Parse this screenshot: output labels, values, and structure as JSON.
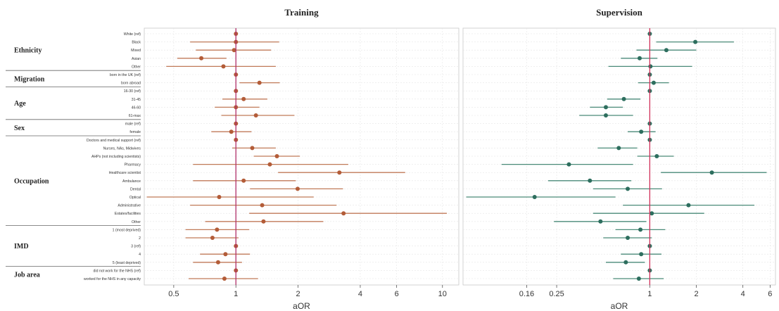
{
  "chart_data": [
    {
      "type": "forest",
      "title": "Training",
      "xlabel": "aOR",
      "x_scale": "log",
      "xlim": [
        0.36,
        12
      ],
      "xticks": [
        0.5,
        1,
        2,
        4,
        6,
        10
      ],
      "xtick_labels": [
        "0.5",
        "1",
        "2",
        "4",
        "6",
        "10"
      ],
      "reference_line": 1,
      "point_color": "#b35c38",
      "line_color": "#c07a58",
      "ref_line_color": "#b0306a",
      "rows": [
        {
          "label": "White (ref)",
          "or": 1.0,
          "lo": 1.0,
          "hi": 1.0
        },
        {
          "label": "Black",
          "or": 1.0,
          "lo": 0.6,
          "hi": 1.62
        },
        {
          "label": "Mixed",
          "or": 0.98,
          "lo": 0.64,
          "hi": 1.48
        },
        {
          "label": "Asian",
          "or": 0.68,
          "lo": 0.52,
          "hi": 0.9
        },
        {
          "label": "Other",
          "or": 0.87,
          "lo": 0.46,
          "hi": 1.56
        },
        {
          "label": "born in the UK (ref)",
          "or": 1.0,
          "lo": 1.0,
          "hi": 1.0
        },
        {
          "label": "born abroad",
          "or": 1.3,
          "lo": 1.04,
          "hi": 1.63
        },
        {
          "label": "16-30 (ref)",
          "or": 1.0,
          "lo": 1.0,
          "hi": 1.0
        },
        {
          "label": "31-45",
          "or": 1.09,
          "lo": 0.86,
          "hi": 1.42
        },
        {
          "label": "46-60",
          "or": 1.0,
          "lo": 0.79,
          "hi": 1.3
        },
        {
          "label": "61-max",
          "or": 1.25,
          "lo": 0.85,
          "hi": 1.92
        },
        {
          "label": "male (ref)",
          "or": 1.0,
          "lo": 1.0,
          "hi": 1.0
        },
        {
          "label": "female",
          "or": 0.95,
          "lo": 0.76,
          "hi": 1.19
        },
        {
          "label": "Doctors and medical support (ref)",
          "or": 1.0,
          "lo": 1.0,
          "hi": 1.0
        },
        {
          "label": "Nurses, NAs, Midwives",
          "or": 1.2,
          "lo": 0.96,
          "hi": 1.56
        },
        {
          "label": "AHPs (not including scientists)",
          "or": 1.58,
          "lo": 1.22,
          "hi": 2.04
        },
        {
          "label": "Pharmacy",
          "or": 1.46,
          "lo": 0.62,
          "hi": 3.5
        },
        {
          "label": "Healthcare scientist",
          "or": 3.17,
          "lo": 1.6,
          "hi": 6.6
        },
        {
          "label": "Ambulance",
          "or": 1.09,
          "lo": 0.62,
          "hi": 1.95
        },
        {
          "label": "Dental",
          "or": 1.99,
          "lo": 1.17,
          "hi": 3.3
        },
        {
          "label": "Optical",
          "or": 0.83,
          "lo": 0.37,
          "hi": 2.38
        },
        {
          "label": "Administrative",
          "or": 1.34,
          "lo": 0.6,
          "hi": 3.07
        },
        {
          "label": "Estates/facilities",
          "or": 3.32,
          "lo": 1.16,
          "hi": 10.5
        },
        {
          "label": "Other",
          "or": 1.36,
          "lo": 0.71,
          "hi": 2.65
        },
        {
          "label": "1 (most deprived)",
          "or": 0.81,
          "lo": 0.57,
          "hi": 1.16
        },
        {
          "label": "2",
          "or": 0.77,
          "lo": 0.57,
          "hi": 1.03
        },
        {
          "label": "3 (ref)",
          "or": 1.0,
          "lo": 1.0,
          "hi": 1.0
        },
        {
          "label": "4",
          "or": 0.89,
          "lo": 0.67,
          "hi": 1.17
        },
        {
          "label": "5 (least deprived)",
          "or": 0.82,
          "lo": 0.62,
          "hi": 1.07
        },
        {
          "label": "did not work for the NHS (ref)",
          "or": 1.0,
          "lo": 1.0,
          "hi": 1.0
        },
        {
          "label": "worked for the NHS in any capacity",
          "or": 0.88,
          "lo": 0.59,
          "hi": 1.28
        }
      ]
    },
    {
      "type": "forest",
      "title": "Supervision",
      "xlabel": "aOR",
      "x_scale": "log",
      "xlim": [
        0.062,
        6.5
      ],
      "xticks": [
        0.16,
        0.25,
        1,
        2,
        4,
        6
      ],
      "xtick_labels": [
        "0.16",
        "0.25",
        "1",
        "2",
        "4",
        "6"
      ],
      "reference_line": 1,
      "point_color": "#2d6e5e",
      "line_color": "#4a8a78",
      "ref_line_color": "#d0305a",
      "rows": [
        {
          "label": "White (ref)",
          "or": 1.0,
          "lo": 1.0,
          "hi": 1.0
        },
        {
          "label": "Black",
          "or": 1.97,
          "lo": 1.1,
          "hi": 3.5
        },
        {
          "label": "Mixed",
          "or": 1.28,
          "lo": 0.82,
          "hi": 2.0
        },
        {
          "label": "Asian",
          "or": 0.86,
          "lo": 0.65,
          "hi": 1.12
        },
        {
          "label": "Other",
          "or": 1.01,
          "lo": 0.54,
          "hi": 1.88
        },
        {
          "label": "born in the UK (ref)",
          "or": 1.0,
          "lo": 1.0,
          "hi": 1.0
        },
        {
          "label": "born abroad",
          "or": 1.06,
          "lo": 0.84,
          "hi": 1.33
        },
        {
          "label": "16-30 (ref)",
          "or": 1.0,
          "lo": 1.0,
          "hi": 1.0
        },
        {
          "label": "31-45",
          "or": 0.68,
          "lo": 0.53,
          "hi": 0.87
        },
        {
          "label": "46-60",
          "or": 0.52,
          "lo": 0.41,
          "hi": 0.67
        },
        {
          "label": "61-max",
          "or": 0.52,
          "lo": 0.35,
          "hi": 0.78
        },
        {
          "label": "male (ref)",
          "or": 1.0,
          "lo": 1.0,
          "hi": 1.0
        },
        {
          "label": "female",
          "or": 0.88,
          "lo": 0.72,
          "hi": 1.09
        },
        {
          "label": "Doctors and medical support (ref)",
          "or": 1.0,
          "lo": 1.0,
          "hi": 1.0
        },
        {
          "label": "Nurses, NAs, Midwives",
          "or": 0.63,
          "lo": 0.46,
          "hi": 0.83
        },
        {
          "label": "AHPs (not including scientists)",
          "or": 1.11,
          "lo": 0.83,
          "hi": 1.43
        },
        {
          "label": "Pharmacy",
          "or": 0.3,
          "lo": 0.11,
          "hi": 0.78
        },
        {
          "label": "Healthcare scientist",
          "or": 2.52,
          "lo": 1.18,
          "hi": 5.7
        },
        {
          "label": "Ambulance",
          "or": 0.41,
          "lo": 0.22,
          "hi": 0.76
        },
        {
          "label": "Dental",
          "or": 0.72,
          "lo": 0.43,
          "hi": 1.2
        },
        {
          "label": "Optical",
          "or": 0.18,
          "lo": 0.065,
          "hi": 0.6
        },
        {
          "label": "Administrative",
          "or": 1.78,
          "lo": 0.67,
          "hi": 4.75
        },
        {
          "label": "Estates/facilities",
          "or": 1.03,
          "lo": 0.43,
          "hi": 2.25
        },
        {
          "label": "Other",
          "or": 0.48,
          "lo": 0.24,
          "hi": 0.95
        },
        {
          "label": "1 (most deprived)",
          "or": 0.87,
          "lo": 0.6,
          "hi": 1.26
        },
        {
          "label": "2",
          "or": 0.72,
          "lo": 0.5,
          "hi": 1.03
        },
        {
          "label": "3 (ref)",
          "or": 1.0,
          "lo": 1.0,
          "hi": 1.0
        },
        {
          "label": "4",
          "or": 0.88,
          "lo": 0.65,
          "hi": 1.19
        },
        {
          "label": "5 (least deprived)",
          "or": 0.7,
          "lo": 0.52,
          "hi": 0.93
        },
        {
          "label": "did not work for the NHS (ref)",
          "or": 1.0,
          "lo": 1.0,
          "hi": 1.0
        },
        {
          "label": "worked for the NHS in any capacity",
          "or": 0.85,
          "lo": 0.58,
          "hi": 1.23
        }
      ]
    }
  ],
  "groups": [
    {
      "label": "Ethnicity",
      "rows": 5
    },
    {
      "label": "Migration",
      "rows": 2
    },
    {
      "label": "Age",
      "rows": 4
    },
    {
      "label": "Sex",
      "rows": 2
    },
    {
      "label": "Occupation",
      "rows": 11
    },
    {
      "label": "IMD",
      "rows": 5
    },
    {
      "label": "Job area",
      "rows": 2
    }
  ]
}
